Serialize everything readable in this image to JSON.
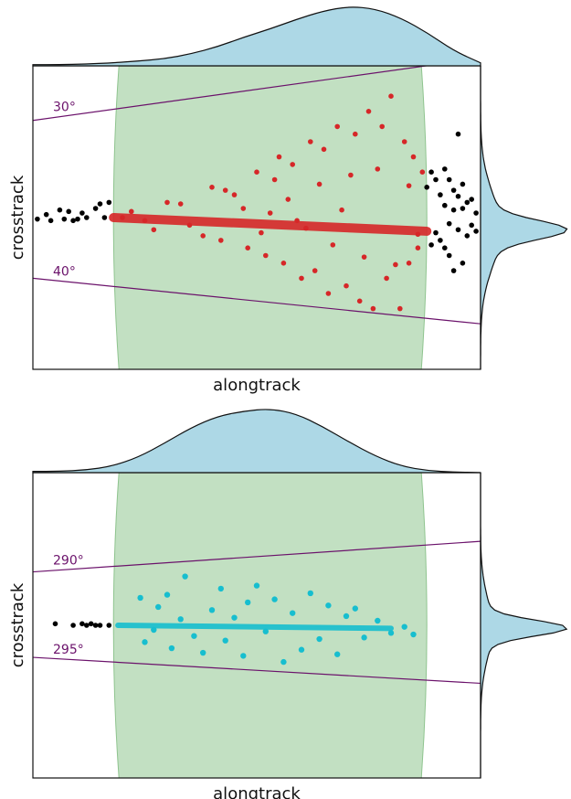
{
  "colors": {
    "swath_fill": "#c2e0c2",
    "swath_edge": "#8fc48f",
    "marginal_fill": "#add8e6",
    "isoline": "#6b126b",
    "outside_points": "#000000",
    "top_points": "#d62728",
    "bottom_points": "#17becf"
  },
  "chart_data": [
    {
      "type": "scatter",
      "xlabel": "alongtrack",
      "ylabel": "crosstrack",
      "xlim": [
        0,
        100
      ],
      "ylim": [
        -10,
        10
      ],
      "grid": false,
      "swath_x": [
        18,
        88
      ],
      "isolines": [
        {
          "label": "30°",
          "x": [
            0,
            100
          ],
          "y": [
            6.4,
            10.5
          ]
        },
        {
          "label": "40°",
          "x": [
            0,
            100
          ],
          "y": [
            -4.0,
            -7.0
          ]
        }
      ],
      "outside_points": [
        [
          -1,
          0.1
        ],
        [
          1,
          -0.1
        ],
        [
          3,
          0.2
        ],
        [
          4,
          -0.2
        ],
        [
          6,
          0.5
        ],
        [
          7,
          -0.1
        ],
        [
          8,
          0.4
        ],
        [
          9,
          -0.2
        ],
        [
          10,
          -0.1
        ],
        [
          11,
          0.3
        ],
        [
          12,
          0.0
        ],
        [
          14,
          0.6
        ],
        [
          15,
          0.9
        ],
        [
          16,
          0.0
        ],
        [
          17,
          1.0
        ],
        [
          88,
          2.0
        ],
        [
          89,
          3.0
        ],
        [
          90,
          -1.0
        ],
        [
          91,
          1.5
        ],
        [
          92,
          -2.0
        ],
        [
          93,
          2.5
        ],
        [
          94,
          0.5
        ],
        [
          95,
          5.5
        ],
        [
          96,
          -3.0
        ],
        [
          97,
          1.0
        ],
        [
          98,
          -0.5
        ],
        [
          99,
          0.3
        ],
        [
          90,
          2.5
        ],
        [
          91,
          -1.5
        ],
        [
          92,
          0.8
        ],
        [
          93,
          -2.5
        ],
        [
          94,
          1.8
        ],
        [
          95,
          -0.8
        ],
        [
          96,
          0.6
        ],
        [
          97,
          -1.2
        ],
        [
          98,
          1.2
        ],
        [
          99,
          -0.9
        ],
        [
          92,
          3.2
        ],
        [
          94,
          -3.5
        ],
        [
          96,
          2.2
        ],
        [
          89,
          -1.8
        ],
        [
          93,
          -0.4
        ],
        [
          95,
          1.4
        ]
      ],
      "main_points": [
        [
          25,
          -0.2
        ],
        [
          30,
          1.0
        ],
        [
          35,
          -0.5
        ],
        [
          40,
          2.0
        ],
        [
          42,
          -1.5
        ],
        [
          45,
          1.5
        ],
        [
          48,
          -2.0
        ],
        [
          50,
          3.0
        ],
        [
          52,
          -2.5
        ],
        [
          54,
          2.5
        ],
        [
          55,
          4.0
        ],
        [
          56,
          -3.0
        ],
        [
          58,
          3.5
        ],
        [
          60,
          -4.0
        ],
        [
          62,
          5.0
        ],
        [
          63,
          -3.5
        ],
        [
          65,
          4.5
        ],
        [
          66,
          -5.0
        ],
        [
          68,
          6.0
        ],
        [
          70,
          -4.5
        ],
        [
          72,
          5.5
        ],
        [
          73,
          -5.5
        ],
        [
          75,
          7.0
        ],
        [
          76,
          -6.0
        ],
        [
          78,
          6.0
        ],
        [
          79,
          -4.0
        ],
        [
          80,
          8.0
        ],
        [
          82,
          -6.0
        ],
        [
          83,
          5.0
        ],
        [
          84,
          -3.0
        ],
        [
          85,
          4.0
        ],
        [
          86,
          -2.0
        ],
        [
          87,
          3.0
        ],
        [
          20,
          0.0
        ],
        [
          22,
          0.4
        ],
        [
          27,
          -0.8
        ],
        [
          33,
          0.9
        ],
        [
          38,
          -1.2
        ],
        [
          43,
          1.8
        ],
        [
          47,
          0.6
        ],
        [
          51,
          -1.0
        ],
        [
          57,
          1.2
        ],
        [
          61,
          -0.7
        ],
        [
          64,
          2.2
        ],
        [
          67,
          -1.8
        ],
        [
          71,
          2.8
        ],
        [
          74,
          -2.6
        ],
        [
          77,
          3.2
        ],
        [
          81,
          -3.1
        ],
        [
          84,
          2.1
        ],
        [
          86,
          -1.1
        ],
        [
          69,
          0.5
        ],
        [
          59,
          -0.2
        ],
        [
          53,
          0.3
        ]
      ],
      "trend": {
        "x": [
          18,
          88
        ],
        "y": [
          0,
          -0.9
        ]
      }
    },
    {
      "type": "scatter",
      "xlabel": "alongtrack",
      "ylabel": "crosstrack",
      "xlim": [
        0,
        100
      ],
      "ylim": [
        -10,
        10
      ],
      "grid": false,
      "swath_x": [
        18,
        88
      ],
      "isolines": [
        {
          "label": "290°",
          "x": [
            0,
            100
          ],
          "y": [
            3.5,
            5.5
          ]
        },
        {
          "label": "295°",
          "x": [
            0,
            100
          ],
          "y": [
            -2.1,
            -3.8
          ]
        }
      ],
      "outside_points": [
        [
          5,
          0.1
        ],
        [
          9,
          0.0
        ],
        [
          11,
          0.1
        ],
        [
          12,
          0.0
        ],
        [
          13,
          0.1
        ],
        [
          14,
          0.0
        ],
        [
          15,
          0.0
        ],
        [
          17,
          0.0
        ]
      ],
      "main_points": [
        [
          24,
          1.8
        ],
        [
          25,
          -1.1
        ],
        [
          27,
          -0.3
        ],
        [
          28,
          1.2
        ],
        [
          30,
          2.0
        ],
        [
          31,
          -1.5
        ],
        [
          33,
          0.4
        ],
        [
          34,
          3.2
        ],
        [
          36,
          -0.7
        ],
        [
          38,
          -1.8
        ],
        [
          40,
          1.0
        ],
        [
          42,
          2.4
        ],
        [
          43,
          -1.0
        ],
        [
          45,
          0.5
        ],
        [
          47,
          -2.0
        ],
        [
          48,
          1.5
        ],
        [
          50,
          2.6
        ],
        [
          52,
          -0.4
        ],
        [
          54,
          1.7
        ],
        [
          56,
          -2.4
        ],
        [
          58,
          0.8
        ],
        [
          60,
          -1.6
        ],
        [
          62,
          2.1
        ],
        [
          64,
          -0.9
        ],
        [
          66,
          1.3
        ],
        [
          68,
          -1.9
        ],
        [
          70,
          0.6
        ],
        [
          72,
          1.1
        ],
        [
          74,
          -0.8
        ],
        [
          77,
          0.3
        ],
        [
          80,
          -0.5
        ],
        [
          83,
          -0.1
        ],
        [
          85,
          -0.6
        ]
      ],
      "trend": {
        "x": [
          19,
          80
        ],
        "y": [
          0,
          -0.2
        ]
      }
    }
  ]
}
